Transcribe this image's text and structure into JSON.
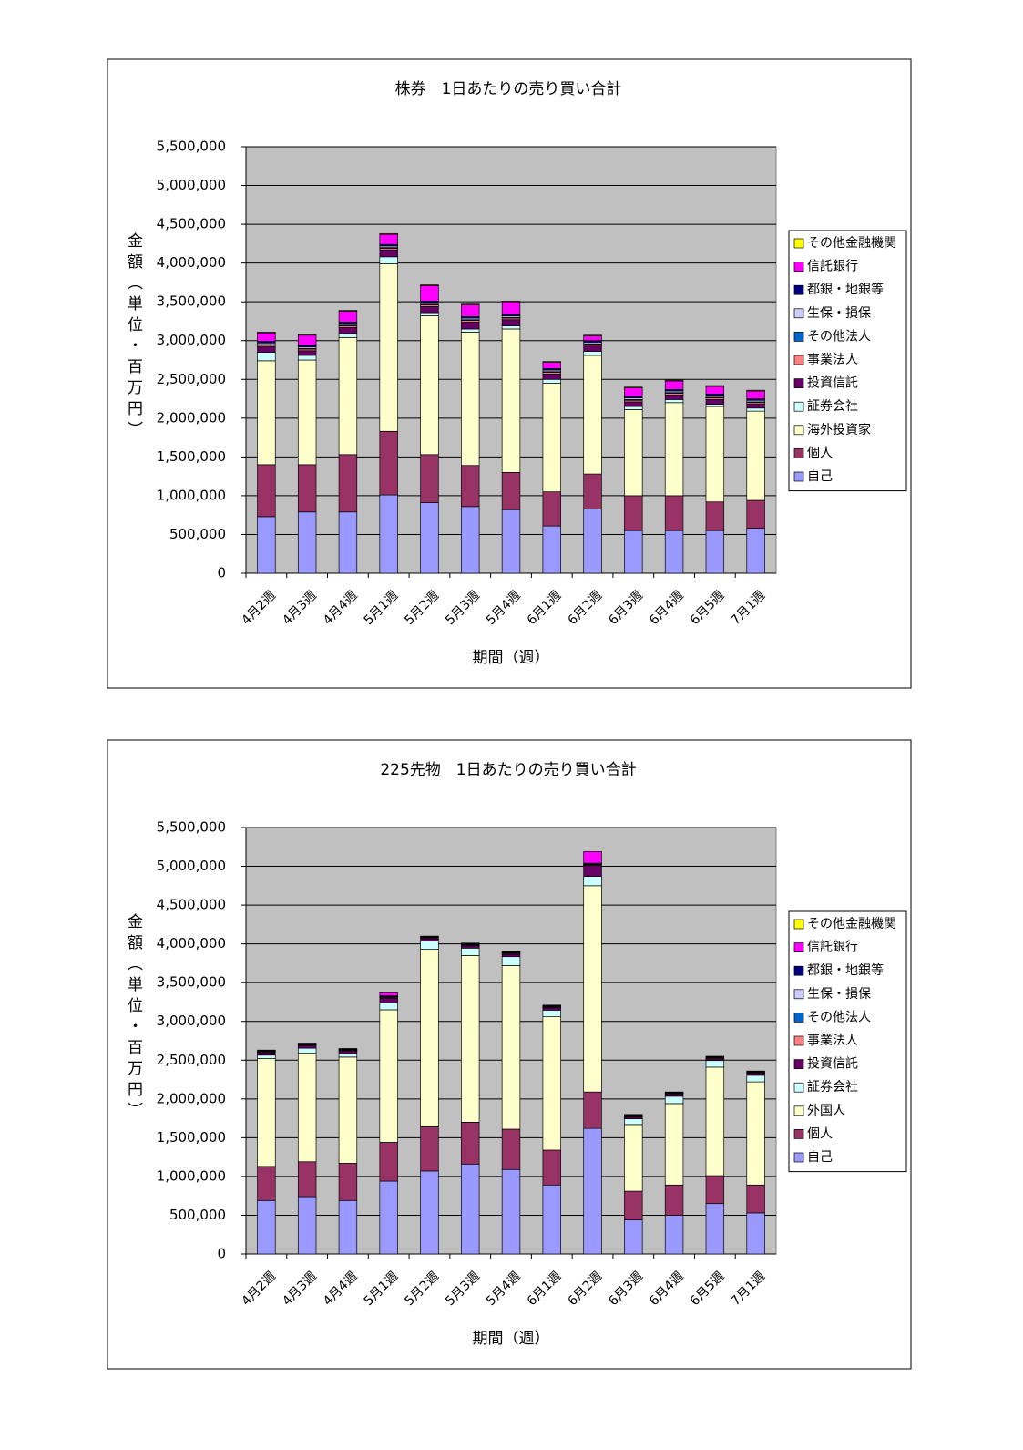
{
  "chart_data": [
    {
      "type": "stacked-bar",
      "title": "株券　1日あたりの売り買い合計",
      "x_label": "期間（週）",
      "y_label": "金額（単位・百万円）",
      "categories": [
        "4月2週",
        "4月3週",
        "4月4週",
        "5月1週",
        "5月2週",
        "5月3週",
        "5月4週",
        "6月1週",
        "6月2週",
        "6月3週",
        "6月4週",
        "6月5週",
        "7月1週"
      ],
      "ylim": [
        0,
        5500000
      ],
      "yticks": [
        0,
        {
          "value": 500000,
          "label": "500,000"
        },
        {
          "value": 1000000,
          "label": "1,000,000"
        },
        {
          "value": 1500000,
          "label": "1,500,000"
        },
        {
          "value": 2000000,
          "label": "2,000,000"
        },
        {
          "value": 2500000,
          "label": "2,500,000"
        },
        {
          "value": 3000000,
          "label": "3,000,000"
        },
        {
          "value": 3500000,
          "label": "3,500,000"
        },
        {
          "value": 4000000,
          "label": "4,000,000"
        },
        {
          "value": 4500000,
          "label": "4,500,000"
        },
        {
          "value": 5000000,
          "label": "5,000,000"
        },
        {
          "value": 5500000,
          "label": "5,500,000"
        }
      ],
      "grid": true,
      "legend": "right",
      "plot_color": "#c0c0c0",
      "series": [
        {
          "name": "自己",
          "color": "#9999ff",
          "values": [
            730000,
            790000,
            790000,
            1010000,
            910000,
            860000,
            820000,
            610000,
            830000,
            550000,
            550000,
            550000,
            580000
          ]
        },
        {
          "name": "個人",
          "color": "#993366",
          "values": [
            670000,
            610000,
            740000,
            820000,
            620000,
            530000,
            480000,
            440000,
            450000,
            450000,
            450000,
            370000,
            360000
          ]
        },
        {
          "name": "海外投資家",
          "color": "#ffffcc",
          "values": [
            1340000,
            1350000,
            1510000,
            2160000,
            1790000,
            1720000,
            1850000,
            1400000,
            1530000,
            1110000,
            1200000,
            1230000,
            1150000
          ]
        },
        {
          "name": "証券会社",
          "color": "#ccffff",
          "values": [
            110000,
            60000,
            50000,
            90000,
            40000,
            40000,
            40000,
            50000,
            50000,
            40000,
            40000,
            30000,
            40000
          ]
        },
        {
          "name": "投資信託",
          "color": "#660066",
          "values": [
            70000,
            60000,
            80000,
            90000,
            80000,
            90000,
            80000,
            70000,
            70000,
            60000,
            60000,
            60000,
            50000
          ]
        },
        {
          "name": "事業法人",
          "color": "#ff8080",
          "values": [
            20000,
            20000,
            20000,
            20000,
            20000,
            20000,
            20000,
            20000,
            20000,
            20000,
            20000,
            20000,
            20000
          ]
        },
        {
          "name": "その他法人",
          "color": "#0066cc",
          "values": [
            10000,
            10000,
            10000,
            10000,
            10000,
            10000,
            10000,
            10000,
            10000,
            10000,
            10000,
            10000,
            10000
          ]
        },
        {
          "name": "生保・損保",
          "color": "#ccccff",
          "values": [
            20000,
            20000,
            20000,
            20000,
            20000,
            20000,
            20000,
            20000,
            20000,
            20000,
            20000,
            20000,
            20000
          ]
        },
        {
          "name": "都銀・地銀等",
          "color": "#000080",
          "values": [
            20000,
            20000,
            20000,
            20000,
            20000,
            20000,
            20000,
            20000,
            20000,
            20000,
            20000,
            20000,
            20000
          ]
        },
        {
          "name": "信託銀行",
          "color": "#ff00ff",
          "values": [
            110000,
            130000,
            140000,
            130000,
            200000,
            150000,
            160000,
            80000,
            60000,
            110000,
            110000,
            100000,
            100000
          ]
        },
        {
          "name": "その他金融機関",
          "color": "#ffff00",
          "values": [
            10000,
            10000,
            10000,
            10000,
            10000,
            10000,
            10000,
            10000,
            10000,
            10000,
            10000,
            10000,
            10000
          ]
        }
      ]
    },
    {
      "type": "stacked-bar",
      "title": "225先物　1日あたりの売り買い合計",
      "x_label": "期間（週）",
      "y_label": "金額（単位・百万円）",
      "categories": [
        "4月2週",
        "4月3週",
        "4月4週",
        "5月1週",
        "5月2週",
        "5月3週",
        "5月4週",
        "6月1週",
        "6月2週",
        "6月3週",
        "6月4週",
        "6月5週",
        "7月1週"
      ],
      "ylim": [
        0,
        5500000
      ],
      "yticks": [
        0,
        {
          "value": 500000,
          "label": "500,000"
        },
        {
          "value": 1000000,
          "label": "1,000,000"
        },
        {
          "value": 1500000,
          "label": "1,500,000"
        },
        {
          "value": 2000000,
          "label": "2,000,000"
        },
        {
          "value": 2500000,
          "label": "2,500,000"
        },
        {
          "value": 3000000,
          "label": "3,000,000"
        },
        {
          "value": 3500000,
          "label": "3,500,000"
        },
        {
          "value": 4000000,
          "label": "4,000,000"
        },
        {
          "value": 4500000,
          "label": "4,500,000"
        },
        {
          "value": 5000000,
          "label": "5,000,000"
        },
        {
          "value": 5500000,
          "label": "5,500,000"
        }
      ],
      "grid": true,
      "legend": "right",
      "plot_color": "#c0c0c0",
      "series": [
        {
          "name": "自己",
          "color": "#9999ff",
          "values": [
            690000,
            740000,
            690000,
            940000,
            1070000,
            1160000,
            1090000,
            890000,
            1620000,
            440000,
            500000,
            650000,
            530000
          ]
        },
        {
          "name": "個人",
          "color": "#993366",
          "values": [
            440000,
            450000,
            480000,
            500000,
            570000,
            540000,
            520000,
            450000,
            470000,
            370000,
            390000,
            360000,
            360000
          ]
        },
        {
          "name": "外国人",
          "color": "#ffffcc",
          "values": [
            1390000,
            1400000,
            1370000,
            1710000,
            2290000,
            2150000,
            2110000,
            1720000,
            2660000,
            860000,
            1050000,
            1400000,
            1330000
          ]
        },
        {
          "name": "証券会社",
          "color": "#ccffff",
          "values": [
            45000,
            65000,
            45000,
            90000,
            105000,
            95000,
            115000,
            85000,
            120000,
            75000,
            95000,
            85000,
            85000
          ]
        },
        {
          "name": "投資信託",
          "color": "#660066",
          "values": [
            30000,
            30000,
            30000,
            60000,
            30000,
            30000,
            30000,
            30000,
            140000,
            20000,
            20000,
            20000,
            20000
          ]
        },
        {
          "name": "事業法人",
          "color": "#ff8080",
          "values": [
            10000,
            10000,
            10000,
            10000,
            10000,
            10000,
            10000,
            10000,
            10000,
            10000,
            10000,
            10000,
            10000
          ]
        },
        {
          "name": "その他法人",
          "color": "#0066cc",
          "values": [
            5000,
            5000,
            5000,
            5000,
            5000,
            5000,
            5000,
            5000,
            5000,
            5000,
            5000,
            5000,
            5000
          ]
        },
        {
          "name": "生保・損保",
          "color": "#ccccff",
          "values": [
            5000,
            5000,
            5000,
            5000,
            5000,
            5000,
            5000,
            5000,
            5000,
            5000,
            5000,
            5000,
            5000
          ]
        },
        {
          "name": "都銀・地銀等",
          "color": "#000080",
          "values": [
            10000,
            10000,
            10000,
            10000,
            10000,
            10000,
            10000,
            10000,
            10000,
            10000,
            10000,
            10000,
            10000
          ]
        },
        {
          "name": "信託銀行",
          "color": "#ff00ff",
          "values": [
            5000,
            5000,
            5000,
            40000,
            5000,
            5000,
            5000,
            5000,
            150000,
            5000,
            5000,
            5000,
            5000
          ]
        },
        {
          "name": "その他金融機関",
          "color": "#ffff00",
          "values": [
            0,
            0,
            0,
            0,
            0,
            0,
            0,
            0,
            0,
            0,
            0,
            0,
            0
          ]
        }
      ]
    }
  ]
}
